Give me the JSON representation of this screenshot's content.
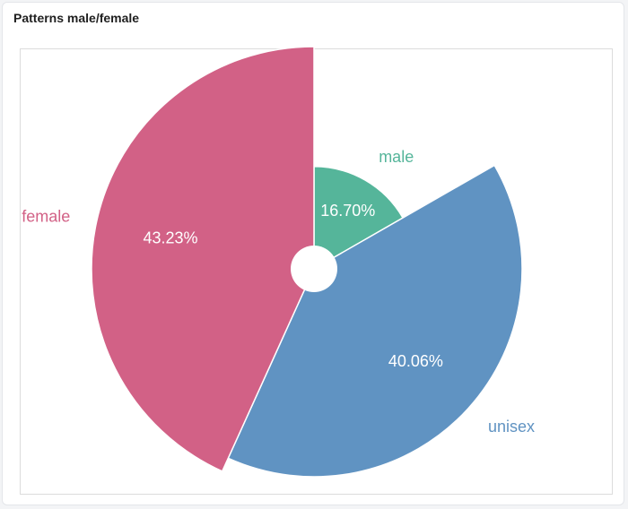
{
  "panel": {
    "title": "Patterns male/female"
  },
  "chart_data": {
    "type": "pie",
    "title": "",
    "slices": [
      {
        "label": "male",
        "value": 16.7,
        "display": "16.70%",
        "color": "#55b59a"
      },
      {
        "label": "unisex",
        "value": 40.06,
        "display": "40.06%",
        "color": "#6093c2"
      },
      {
        "label": "female",
        "value": 43.23,
        "display": "43.23%",
        "color": "#d26186"
      }
    ],
    "legend": "none"
  }
}
